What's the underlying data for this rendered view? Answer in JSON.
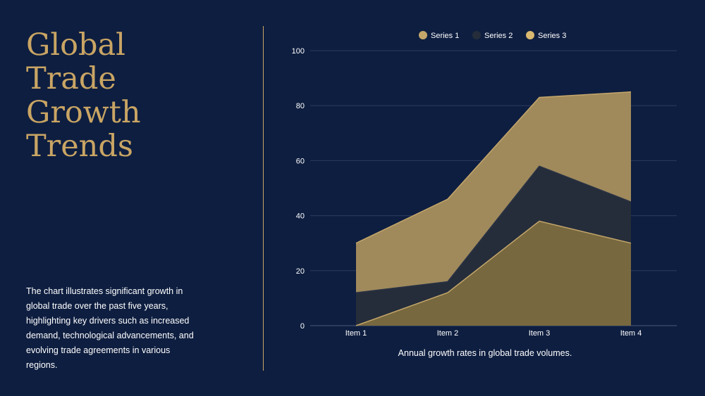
{
  "slide": {
    "title_lines": [
      "Global",
      "Trade",
      "Growth",
      "Trends"
    ],
    "description": "The chart illustrates significant growth in global trade over the past five years, highlighting key drivers such as increased demand, technological advancements, and evolving trade agreements in various regions.",
    "caption": "Annual growth rates in global trade volumes."
  },
  "colors": {
    "background": "#0e1e40",
    "accent": "#c9a564",
    "series1": "#a08a5c",
    "series2": "#252d3a",
    "series3": "#77683f",
    "series1_legend": "#c4a66a",
    "series2_legend": "#252d3a",
    "series3_legend": "#d9b870"
  },
  "chart_data": {
    "type": "area",
    "categories": [
      "Item 1",
      "Item 2",
      "Item 3",
      "Item 4"
    ],
    "series": [
      {
        "name": "Series 1",
        "values": [
          30,
          46,
          83,
          85
        ]
      },
      {
        "name": "Series 2",
        "values": [
          12,
          16,
          58,
          45
        ]
      },
      {
        "name": "Series 3",
        "values": [
          0,
          12,
          38,
          30
        ]
      }
    ],
    "ylim": [
      0,
      100
    ],
    "yticks": [
      0,
      20,
      40,
      60,
      80,
      100
    ],
    "legend_position": "top-center",
    "grid": true,
    "title": "",
    "xlabel": "",
    "ylabel": ""
  }
}
